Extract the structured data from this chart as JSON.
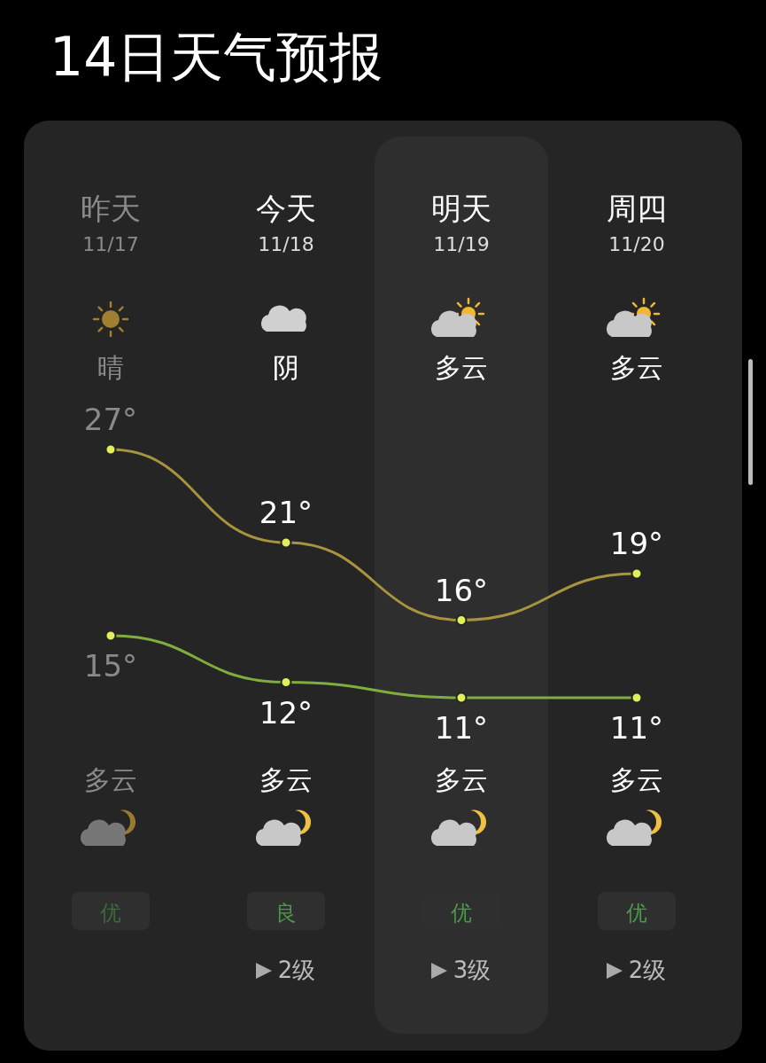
{
  "chart_data": {
    "type": "line",
    "title": "14日天气预报",
    "categories": [
      "昨天",
      "今天",
      "明天",
      "周四"
    ],
    "marker": "circle",
    "series": [
      {
        "color": "#a8943e",
        "values": [
          27,
          21,
          16,
          19
        ],
        "value_labels": [
          "27°",
          "21°",
          "16°",
          "19°"
        ]
      },
      {
        "color": "#7fae3f",
        "values": [
          15,
          12,
          11,
          11
        ],
        "value_labels": [
          "15°",
          "12°",
          "11°",
          "11°"
        ]
      }
    ],
    "bands": [
      {
        "axis": "x",
        "from": "明天",
        "to": "明天",
        "color": "#2e2e2e"
      }
    ],
    "annotations": [
      "11/17",
      "11/18",
      "11/19",
      "11/20",
      "晴",
      "阴",
      "多云",
      "多云",
      "多云",
      "多云",
      "多云",
      "多云",
      "优",
      "良",
      "优",
      "优",
      "2级",
      "3级",
      "2级"
    ]
  }
}
